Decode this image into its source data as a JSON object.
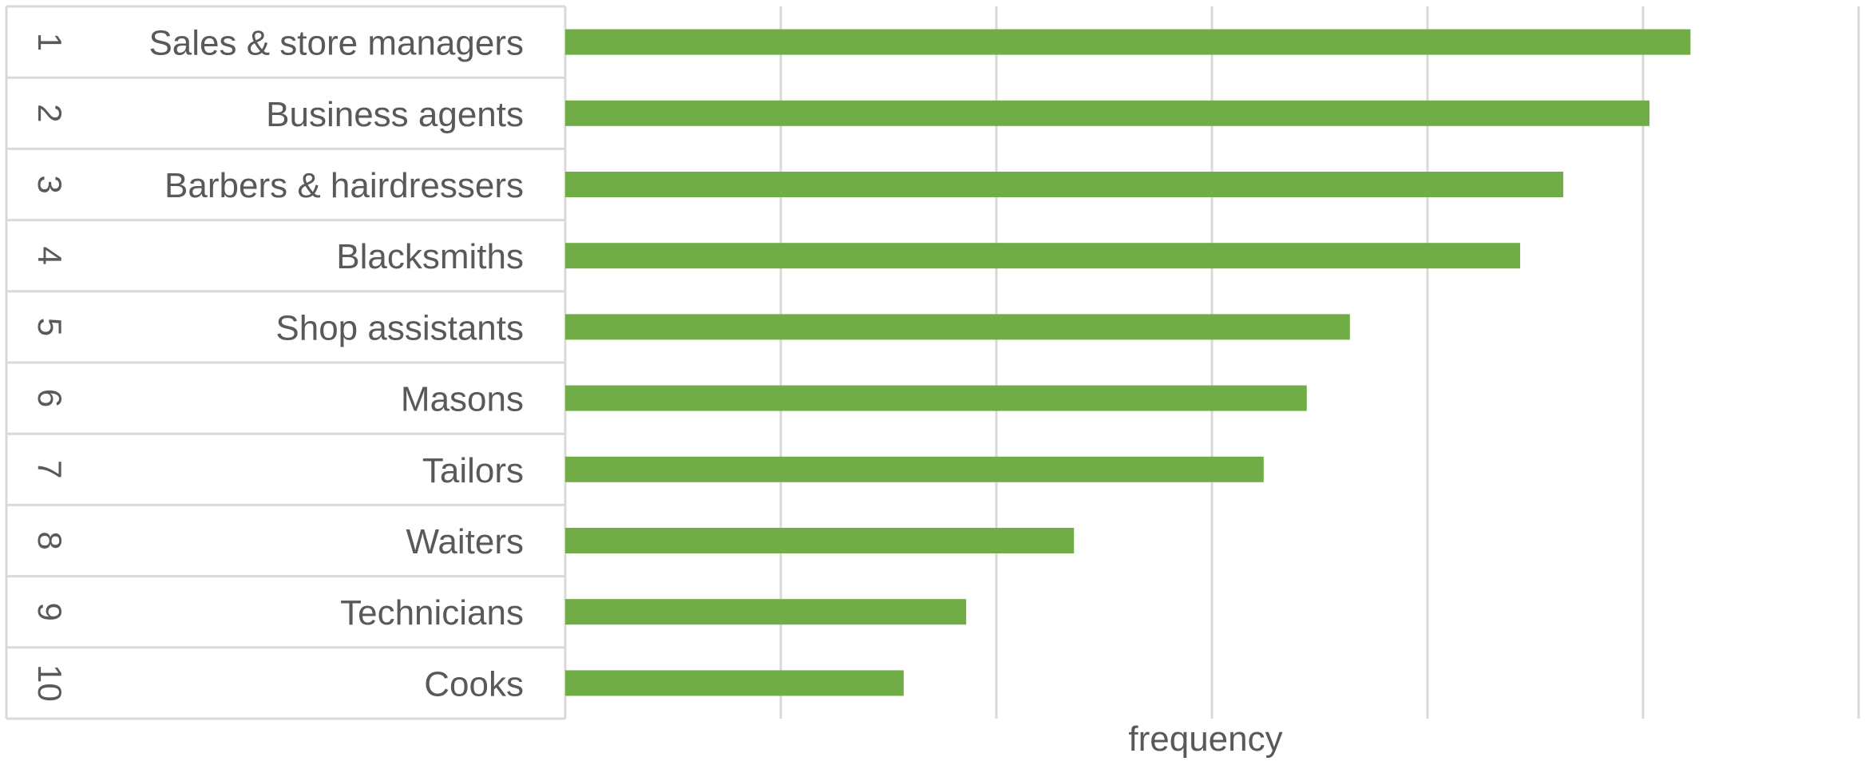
{
  "chart_data": {
    "type": "bar",
    "orientation": "horizontal",
    "ranks": [
      "1",
      "2",
      "3",
      "4",
      "5",
      "6",
      "7",
      "8",
      "9",
      "10"
    ],
    "categories": [
      "Sales & store managers",
      "Business agents",
      "Barbers & hairdressers",
      "Blacksmiths",
      "Shop assistants",
      "Masons",
      "Tailors",
      "Waiters",
      "Technicians",
      "Cooks"
    ],
    "values": [
      5.22,
      5.03,
      4.63,
      4.43,
      3.64,
      3.44,
      3.24,
      2.36,
      1.86,
      1.57
    ],
    "xlim": [
      0,
      6
    ],
    "xlabel": "frequency",
    "ylabel": "",
    "title": "",
    "grid": true,
    "tick_labels_visible": false,
    "bar_color": "#70ad47",
    "grid_color": "#d9d9d9",
    "text_color": "#595959"
  }
}
